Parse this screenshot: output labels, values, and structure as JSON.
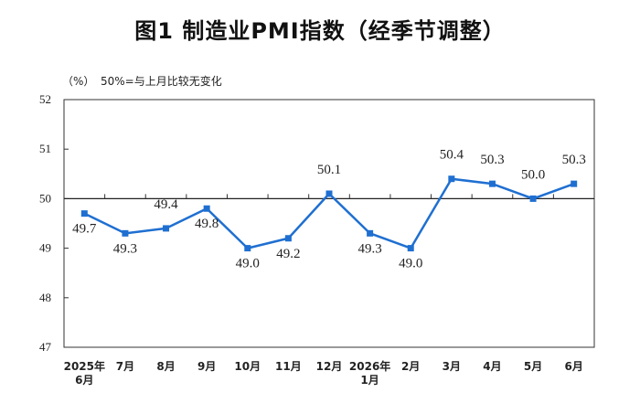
{
  "title": "图1  制造业PMI指数（经季节调整）",
  "unit_label": "（%）",
  "reference_note": "50%=与上月比较无变化",
  "chart_data": {
    "type": "line",
    "categories": [
      [
        "2025年",
        "6月"
      ],
      [
        "7月"
      ],
      [
        "8月"
      ],
      [
        "9月"
      ],
      [
        "10月"
      ],
      [
        "11月"
      ],
      [
        "12月"
      ],
      [
        "2026年",
        "1月"
      ],
      [
        "2月"
      ],
      [
        "3月"
      ],
      [
        "4月"
      ],
      [
        "5月"
      ],
      [
        "6月"
      ]
    ],
    "series": [
      {
        "values": [
          49.7,
          49.3,
          49.4,
          49.8,
          49.0,
          49.2,
          50.1,
          49.3,
          49.0,
          50.4,
          50.3,
          50.0,
          50.3
        ],
        "labels": [
          "49.7",
          "49.3",
          "49.4",
          "49.8",
          "49.0",
          "49.2",
          "50.1",
          "49.3",
          "49.0",
          "50.4",
          "50.3",
          "50.0",
          "50.3"
        ],
        "color": "#1f6fd1"
      }
    ],
    "yticks": [
      "47",
      "48",
      "49",
      "50",
      "51",
      "52"
    ],
    "ylim": [
      47,
      52
    ],
    "reference_line": 50,
    "label_positions": [
      "below",
      "below",
      "above",
      "below",
      "below",
      "below",
      "above",
      "below",
      "below",
      "above",
      "above",
      "above",
      "above"
    ],
    "grid": false
  }
}
